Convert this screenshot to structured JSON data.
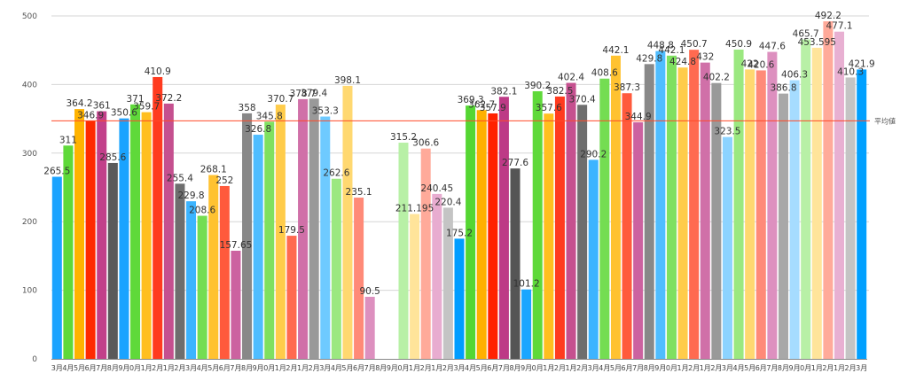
{
  "chart_data": {
    "type": "bar",
    "title": "",
    "xlabel": "",
    "ylabel": "",
    "ylim": [
      0,
      500
    ],
    "yticks": [
      0,
      100,
      200,
      300,
      400,
      500
    ],
    "grid": true,
    "legend": "none",
    "categories": [
      "3月",
      "4月",
      "5月",
      "6月",
      "7月",
      "8月",
      "9月",
      "0月",
      "1月",
      "2月",
      "1月",
      "2月",
      "3月",
      "4月",
      "5月",
      "6月",
      "7月",
      "8月",
      "9月",
      "0月",
      "1月",
      "2月",
      "1月",
      "2月",
      "3月",
      "4月",
      "5月",
      "6月",
      "7月",
      "8月",
      "9月",
      "0月",
      "1月",
      "2月",
      "1月",
      "2月",
      "3月",
      "4月",
      "5月",
      "6月",
      "7月",
      "8月",
      "9月",
      "0月",
      "1月",
      "2月",
      "1月",
      "2月",
      "3月",
      "4月",
      "5月",
      "6月",
      "7月",
      "8月",
      "9月",
      "0月",
      "1月",
      "2月",
      "1月",
      "2月",
      "3月",
      "4月",
      "5月",
      "6月",
      "7月",
      "8月",
      "9月",
      "0月",
      "1月",
      "2月",
      "1月",
      "2月",
      "3月"
    ],
    "values": [
      265.5,
      311,
      364.2,
      346.9,
      361,
      285.6,
      350.6,
      371,
      359.7,
      410.9,
      372.2,
      255.4,
      229.8,
      208.6,
      268.1,
      252,
      157.65,
      358,
      326.8,
      345.8,
      370.7,
      179.5,
      378.7,
      379.4,
      353.3,
      262.6,
      398.1,
      235.1,
      90.5,
      0,
      0,
      315.2,
      211.195,
      306.6,
      240.45,
      220.4,
      175.2,
      369.3,
      362.7,
      357.9,
      382.1,
      277.6,
      101.2,
      390.2,
      357.6,
      382.5,
      402.4,
      370.4,
      290.2,
      408.6,
      442.1,
      387.3,
      344.9,
      429.8,
      448.8,
      442.1,
      424.8,
      450.7,
      432,
      402.2,
      323.5,
      450.9,
      422,
      420.6,
      447.6,
      386.8,
      406.3,
      465.7,
      453.595,
      492.2,
      477.1,
      410.3,
      421.9
    ],
    "data_labels": [
      "265.5",
      "311",
      "364.2",
      "346.9",
      "361",
      "285.6",
      "350.6",
      "371",
      "359.7",
      "410.9",
      "372.2",
      "255.4",
      "229.8",
      "208.6",
      "268.1",
      "252",
      "157.65",
      "358",
      "326.8",
      "345.8",
      "370.7",
      "179.5",
      "378.7",
      "379.4",
      "353.3",
      "262.6",
      "398.1",
      "235.1",
      "90.5",
      "",
      "",
      "315.2",
      "211.195",
      "306.6",
      "240.45",
      "220.4",
      "175.2",
      "369.3",
      "362.7",
      "357.9",
      "382.1",
      "277.6",
      "101.2",
      "390.2",
      "357.6",
      "382.5",
      "402.4",
      "370.4",
      "290.2",
      "408.6",
      "442.1",
      "387.3",
      "344.9",
      "429.8",
      "448.8",
      "442.1",
      "424.8",
      "450.7",
      "432",
      "402.2",
      "323.5",
      "450.9",
      "422",
      "420.6",
      "447.6",
      "386.8",
      "406.3",
      "465.7",
      "453.595",
      "492.2",
      "477.1",
      "410.3",
      "421.9"
    ],
    "average": {
      "label": "平均値",
      "value": 347,
      "color": "#ff4a2a"
    },
    "palette_by_year": [
      [
        "#1aa3ff",
        "#5fd93a",
        "#ffb300",
        "#ff2a00",
        "#c2408a",
        "#5a5a5a",
        "#1aa3ff",
        "#5fd93a",
        "#ffbf1f",
        "#ff3b1f",
        "#c5508f",
        "#6e6e6e"
      ],
      [
        "#3cb4ff",
        "#74dd52",
        "#ffc230",
        "#ff5a3c",
        "#cc62a0",
        "#888888",
        "#4fbdff",
        "#7fe060",
        "#ffcc4a",
        "#ff6a50",
        "#d070a8",
        "#999999"
      ],
      [
        "#6ecaff",
        "#9be880",
        "#ffd870",
        "#ff8a78",
        "#dd90bf",
        "#ffffff",
        "#ffffff",
        "#b8f0a6",
        "#ffe49a",
        "#ffaa9a",
        "#e8acd0",
        "#c4c4c4"
      ],
      [
        "#009dff",
        "#55d633",
        "#ffb000",
        "#ff2200",
        "#bd3a86",
        "#555555",
        "#1aa6ff",
        "#5fd93a",
        "#ffbf1f",
        "#ff3b1f",
        "#c5508f",
        "#6e6e6e"
      ],
      [
        "#3cb4ff",
        "#74dd52",
        "#ffc230",
        "#ff5a3c",
        "#cc62a0",
        "#888888",
        "#4fbdff",
        "#7fe060",
        "#ffcc4a",
        "#ff6a50",
        "#d070a8",
        "#999999"
      ],
      [
        "#8cd3ff",
        "#9be880",
        "#ffd870",
        "#ff8a78",
        "#dd90bf",
        "#a8a8a8",
        "#a6dcff",
        "#b8f0a6",
        "#ffe49a",
        "#ffaa9a",
        "#e8b0d2",
        "#c4c4c4"
      ],
      [
        "#00a0ff"
      ]
    ]
  }
}
